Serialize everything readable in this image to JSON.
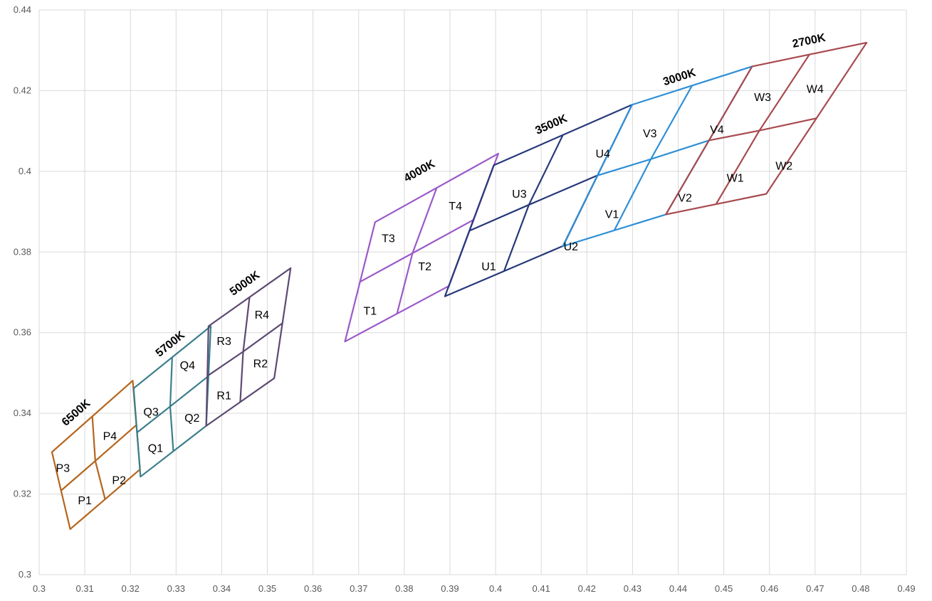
{
  "chart_data": {
    "type": "scatter",
    "title": "",
    "xlabel": "",
    "ylabel": "",
    "xlim": [
      0.3,
      0.49
    ],
    "ylim": [
      0.3,
      0.44
    ],
    "x_ticks": [
      0.3,
      0.31,
      0.32,
      0.33,
      0.34,
      0.35,
      0.36,
      0.37,
      0.38,
      0.39,
      0.4,
      0.41,
      0.42,
      0.43,
      0.44,
      0.45,
      0.46,
      0.47,
      0.48,
      0.49
    ],
    "y_ticks": [
      0.3,
      0.32,
      0.34,
      0.36,
      0.38,
      0.4,
      0.42,
      0.44
    ],
    "x_tick_labels": [
      "0.3",
      "0.31",
      "0.32",
      "0.33",
      "0.34",
      "0.35",
      "0.36",
      "0.37",
      "0.38",
      "0.39",
      "0.4",
      "0.41",
      "0.42",
      "0.43",
      "0.44",
      "0.45",
      "0.46",
      "0.47",
      "0.48",
      "0.49"
    ],
    "y_tick_labels": [
      "0.3",
      "0.32",
      "0.34",
      "0.36",
      "0.38",
      "0.4",
      "0.42",
      "0.44"
    ],
    "grid": true,
    "legend": "none",
    "series": [
      {
        "name": "6500K",
        "color": "#b5651d",
        "outline": [
          [
            0.3028,
            0.3304
          ],
          [
            0.3205,
            0.3481
          ],
          [
            0.3221,
            0.3261
          ],
          [
            0.3068,
            0.3113
          ]
        ],
        "center": [
          0.3123,
          0.3282
        ],
        "label_pos": [
          0.3086,
          0.3395
        ],
        "bins": [
          {
            "label": "P1",
            "pos": [
              0.31,
              0.3185
            ]
          },
          {
            "label": "P2",
            "pos": [
              0.3175,
              0.3235
            ]
          },
          {
            "label": "P3",
            "pos": [
              0.3052,
              0.3265
            ]
          },
          {
            "label": "P4",
            "pos": [
              0.3155,
              0.3345
            ]
          }
        ]
      },
      {
        "name": "5700K",
        "color": "#3c7f8c",
        "outline": [
          [
            0.3207,
            0.3462
          ],
          [
            0.3376,
            0.3616
          ],
          [
            0.3366,
            0.3369
          ],
          [
            0.3222,
            0.3243
          ]
        ],
        "center": [
          0.3287,
          0.3417
        ],
        "label_pos": [
          0.3292,
          0.3565
        ],
        "bins": [
          {
            "label": "Q1",
            "pos": [
              0.3255,
              0.3315
            ]
          },
          {
            "label": "Q2",
            "pos": [
              0.3335,
              0.339
            ]
          },
          {
            "label": "Q3",
            "pos": [
              0.3245,
              0.3405
            ]
          },
          {
            "label": "Q4",
            "pos": [
              0.3325,
              0.352
            ]
          }
        ]
      },
      {
        "name": "5000K",
        "color": "#5c4a72",
        "outline": [
          [
            0.3371,
            0.3616
          ],
          [
            0.3551,
            0.376
          ],
          [
            0.3515,
            0.3487
          ],
          [
            0.3366,
            0.3369
          ]
        ],
        "center": [
          0.3447,
          0.3553
        ],
        "label_pos": [
          0.3455,
          0.3715
        ],
        "bins": [
          {
            "label": "R1",
            "pos": [
              0.3405,
              0.3445
            ]
          },
          {
            "label": "R2",
            "pos": [
              0.3485,
              0.3525
            ]
          },
          {
            "label": "R3",
            "pos": [
              0.3405,
              0.358
            ]
          },
          {
            "label": "R4",
            "pos": [
              0.3488,
              0.3645
            ]
          }
        ]
      },
      {
        "name": "4000K",
        "color": "#9b59c9",
        "outline": [
          [
            0.3736,
            0.3874
          ],
          [
            0.4006,
            0.4044
          ],
          [
            0.3898,
            0.3716
          ],
          [
            0.367,
            0.3578
          ]
        ],
        "center": [
          0.3818,
          0.3797
        ],
        "label_pos": [
          0.3837,
          0.3993
        ],
        "bins": [
          {
            "label": "T1",
            "pos": [
              0.3725,
              0.3655
            ]
          },
          {
            "label": "T2",
            "pos": [
              0.3845,
              0.3765
            ]
          },
          {
            "label": "T3",
            "pos": [
              0.3765,
              0.3835
            ]
          },
          {
            "label": "T4",
            "pos": [
              0.3912,
              0.3915
            ]
          }
        ]
      },
      {
        "name": "3500K",
        "color": "#27397a",
        "outline": [
          [
            0.3996,
            0.4015
          ],
          [
            0.4299,
            0.4165
          ],
          [
            0.4148,
            0.3815
          ],
          [
            0.3889,
            0.369
          ]
        ],
        "center": [
          0.4073,
          0.3917
        ],
        "label_pos": [
          0.4125,
          0.4108
        ],
        "bins": [
          {
            "label": "U1",
            "pos": [
              0.3985,
              0.3765
            ]
          },
          {
            "label": "U2",
            "pos": [
              0.4165,
              0.3815
            ]
          },
          {
            "label": "U3",
            "pos": [
              0.4052,
              0.3945
            ]
          },
          {
            "label": "U4",
            "pos": [
              0.4235,
              0.4045
            ]
          }
        ]
      },
      {
        "name": "3000K",
        "color": "#2f8fd6",
        "outline": [
          [
            0.4299,
            0.4165
          ],
          [
            0.4562,
            0.426
          ],
          [
            0.4373,
            0.3893
          ],
          [
            0.4147,
            0.3814
          ]
        ],
        "center": [
          0.434,
          0.403
        ],
        "label_pos": [
          0.4405,
          0.4225
        ],
        "bins": [
          {
            "label": "V1",
            "pos": [
              0.4255,
              0.3895
            ]
          },
          {
            "label": "V2",
            "pos": [
              0.4415,
              0.3935
            ]
          },
          {
            "label": "V3",
            "pos": [
              0.4338,
              0.4095
            ]
          },
          {
            "label": "V4",
            "pos": [
              0.4485,
              0.4105
            ]
          }
        ]
      },
      {
        "name": "2700K",
        "color": "#a84a4f",
        "outline": [
          [
            0.4562,
            0.426
          ],
          [
            0.4813,
            0.4319
          ],
          [
            0.4593,
            0.3944
          ],
          [
            0.4373,
            0.3893
          ]
        ],
        "center": [
          0.4578,
          0.4101
        ],
        "label_pos": [
          0.4688,
          0.4315
        ],
        "bins": [
          {
            "label": "W1",
            "pos": [
              0.4525,
              0.3985
            ]
          },
          {
            "label": "W2",
            "pos": [
              0.4632,
              0.4015
            ]
          },
          {
            "label": "W3",
            "pos": [
              0.4585,
              0.4185
            ]
          },
          {
            "label": "W4",
            "pos": [
              0.47,
              0.4205
            ]
          }
        ]
      }
    ]
  }
}
